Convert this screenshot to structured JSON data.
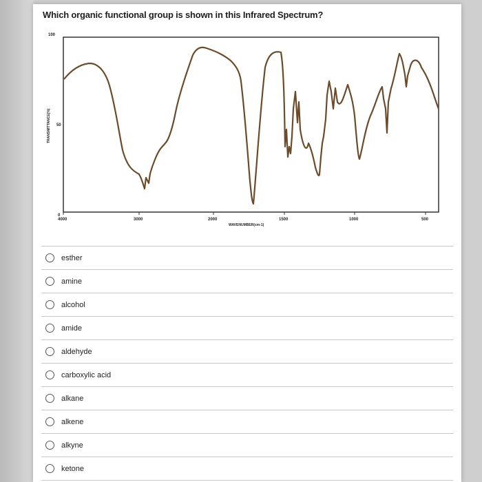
{
  "question": {
    "text": "Which organic functional group is shown in this Infrared Spectrum?"
  },
  "spectrum": {
    "y_top_label": "100",
    "y_mid_label": "50",
    "y_bottom_label": "0",
    "y_axis_title": "TRANSMITTANCE(%)",
    "x_tick_labels": [
      "4000",
      "3000",
      "2000",
      "1500",
      "1000",
      "500"
    ],
    "x_axis_title": "WAVENUMBER(cm-1)",
    "line_color": "#6b4b2a"
  },
  "options": [
    {
      "label": "esther"
    },
    {
      "label": "amine"
    },
    {
      "label": "alcohol"
    },
    {
      "label": "amide"
    },
    {
      "label": "aldehyde"
    },
    {
      "label": "carboxylic acid"
    },
    {
      "label": "alkane"
    },
    {
      "label": "alkene"
    },
    {
      "label": "alkyne"
    },
    {
      "label": "ketone"
    }
  ]
}
